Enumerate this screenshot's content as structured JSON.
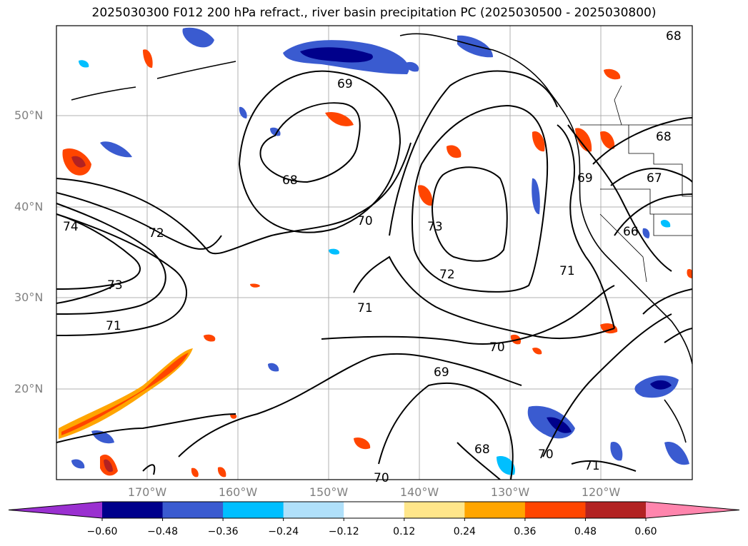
{
  "title": "2025030300 F012 200 hPa refract., river basin precipitation PC (2025030500 - 2025030800)",
  "map": {
    "lat_labels": [
      "50°N",
      "40°N",
      "30°N",
      "20°N"
    ],
    "lon_labels": [
      "170°W",
      "160°W",
      "150°W",
      "140°W",
      "130°W",
      "120°W"
    ],
    "contour_labels": [
      "68",
      "69",
      "68",
      "74",
      "72",
      "73",
      "71",
      "70",
      "73",
      "72",
      "71",
      "70",
      "69",
      "68",
      "70",
      "71",
      "70",
      "69",
      "68",
      "67",
      "66",
      "71"
    ],
    "contour_line_color": "#000000",
    "grid": true
  },
  "colorbar": {
    "tick_labels": [
      "−0.60",
      "−0.48",
      "−0.36",
      "−0.24",
      "−0.12",
      "0.12",
      "0.24",
      "0.36",
      "0.48",
      "0.60"
    ],
    "colors": [
      "#9a30d0",
      "#00008b",
      "#3a5bd0",
      "#00bfff",
      "#b0e0fa",
      "#ffffff",
      "#ffe68a",
      "#ffa500",
      "#ff4500",
      "#b22222",
      "#ff85ad"
    ]
  }
}
